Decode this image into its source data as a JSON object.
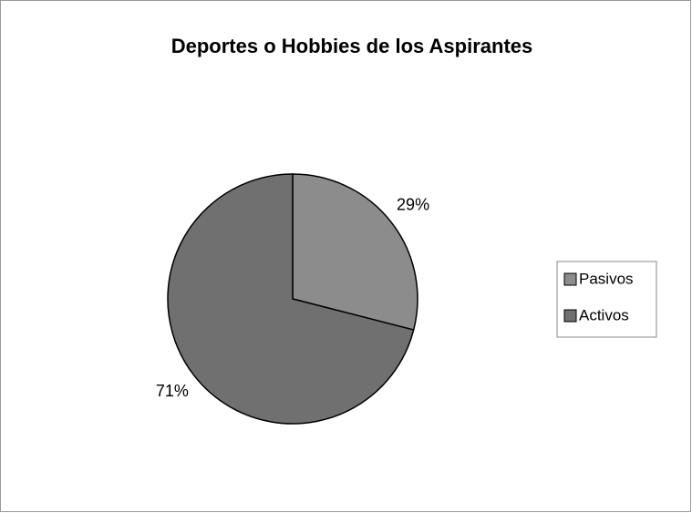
{
  "chart_data": {
    "type": "pie",
    "title": "Deportes o Hobbies de los Aspirantes",
    "categories": [
      "Pasivos",
      "Activos"
    ],
    "values": [
      29,
      71
    ],
    "value_labels": [
      "29%",
      "71%"
    ],
    "colors": [
      "#8c8c8c",
      "#707070"
    ],
    "legend": "right"
  }
}
